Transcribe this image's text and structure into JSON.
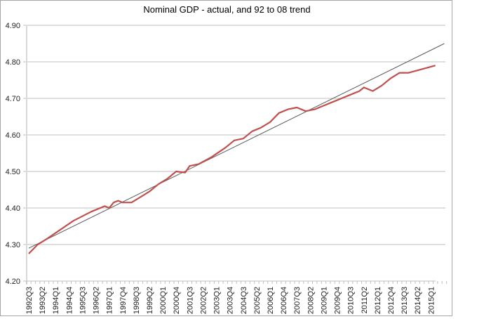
{
  "chart_data": {
    "type": "line",
    "title": "Nominal GDP -  actual, and 92 to 08 trend",
    "xlabel": "",
    "ylabel": "",
    "ylim": [
      4.2,
      4.9
    ],
    "yticks": [
      "4.20",
      "4.30",
      "4.40",
      "4.50",
      "4.60",
      "4.70",
      "4.80",
      "4.90"
    ],
    "grid": "horizontal",
    "legend": "none",
    "x_start": "1992Q3",
    "x_end": "2015Q2",
    "xtick_labels": [
      "1992Q3",
      "1993Q2",
      "1994Q1",
      "1994Q4",
      "1995Q3",
      "1996Q2",
      "1997Q1",
      "1997Q4",
      "1998Q3",
      "1999Q2",
      "2000Q1",
      "2000Q4",
      "2001Q3",
      "2002Q2",
      "2003Q1",
      "2003Q4",
      "2004Q3",
      "2005Q2",
      "2006Q1",
      "2006Q4",
      "2007Q3",
      "2008Q2",
      "2009Q1",
      "2009Q4",
      "2010Q3",
      "2011Q2",
      "2012Q1",
      "2012Q4",
      "2013Q3",
      "2014Q2",
      "2015Q1"
    ],
    "series": [
      {
        "name": "Nominal GDP (actual)",
        "color": "#c0504d",
        "points": [
          [
            "1992Q3",
            4.275
          ],
          [
            "1993Q1",
            4.3
          ],
          [
            "1993Q3",
            4.315
          ],
          [
            "1994Q2",
            4.34
          ],
          [
            "1995Q1",
            4.365
          ],
          [
            "1996Q1",
            4.39
          ],
          [
            "1996Q4",
            4.405
          ],
          [
            "1997Q1",
            4.4
          ],
          [
            "1997Q2",
            4.415
          ],
          [
            "1997Q3",
            4.42
          ],
          [
            "1997Q4",
            4.415
          ],
          [
            "1998Q2",
            4.415
          ],
          [
            "1998Q4",
            4.43
          ],
          [
            "1999Q2",
            4.445
          ],
          [
            "1999Q4",
            4.465
          ],
          [
            "2000Q2",
            4.48
          ],
          [
            "2000Q4",
            4.5
          ],
          [
            "2001Q2",
            4.497
          ],
          [
            "2001Q3",
            4.515
          ],
          [
            "2002Q1",
            4.52
          ],
          [
            "2002Q4",
            4.54
          ],
          [
            "2003Q3",
            4.565
          ],
          [
            "2004Q1",
            4.585
          ],
          [
            "2004Q3",
            4.59
          ],
          [
            "2005Q1",
            4.61
          ],
          [
            "2005Q3",
            4.62
          ],
          [
            "2006Q1",
            4.635
          ],
          [
            "2006Q3",
            4.66
          ],
          [
            "2007Q1",
            4.67
          ],
          [
            "2007Q3",
            4.675
          ],
          [
            "2008Q1",
            4.665
          ],
          [
            "2008Q3",
            4.67
          ],
          [
            "2009Q1",
            4.68
          ],
          [
            "2009Q3",
            4.69
          ],
          [
            "2010Q1",
            4.7
          ],
          [
            "2010Q3",
            4.71
          ],
          [
            "2011Q1",
            4.72
          ],
          [
            "2011Q2",
            4.73
          ],
          [
            "2011Q4",
            4.72
          ],
          [
            "2012Q2",
            4.735
          ],
          [
            "2012Q4",
            4.755
          ],
          [
            "2013Q2",
            4.77
          ],
          [
            "2013Q4",
            4.77
          ],
          [
            "2014Q3",
            4.78
          ],
          [
            "2015Q2",
            4.79
          ]
        ]
      },
      {
        "name": "92 to 08 trend",
        "color": "#595959",
        "points": [
          [
            "1992Q3",
            4.29
          ],
          [
            "2015Q4",
            4.85
          ]
        ]
      }
    ]
  }
}
